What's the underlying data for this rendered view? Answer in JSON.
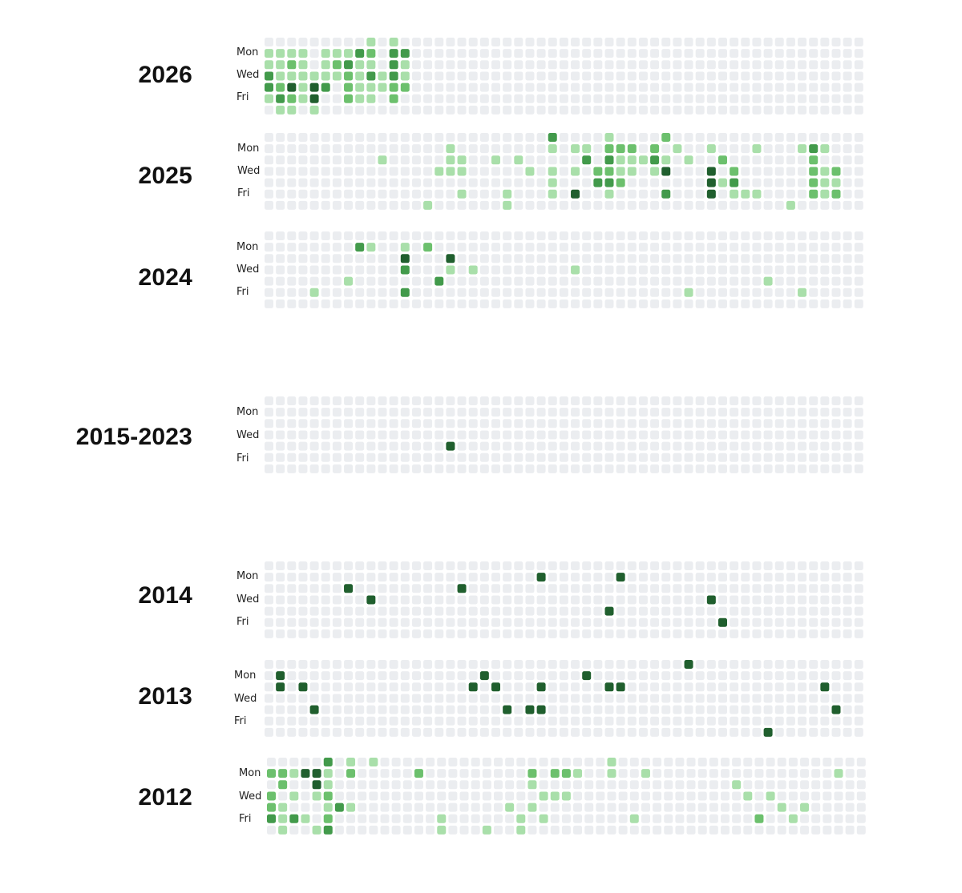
{
  "chart_data": [
    {
      "type": "heatmap",
      "title": "2026",
      "row_labels": [
        "Mon",
        "Wed",
        "Fri"
      ],
      "weeks": 53,
      "colors": {
        "0": "#ebedf0",
        "1": "#a9dfaa",
        "2": "#6cc06d",
        "3": "#429a4b",
        "4": "#205f2e"
      },
      "cells": [
        [
          9,
          0,
          1
        ],
        [
          11,
          0,
          1
        ],
        [
          0,
          1,
          1
        ],
        [
          1,
          1,
          1
        ],
        [
          2,
          1,
          1
        ],
        [
          3,
          1,
          1
        ],
        [
          5,
          1,
          1
        ],
        [
          6,
          1,
          1
        ],
        [
          7,
          1,
          1
        ],
        [
          8,
          1,
          3
        ],
        [
          9,
          1,
          2
        ],
        [
          11,
          1,
          3
        ],
        [
          12,
          1,
          3
        ],
        [
          0,
          2,
          1
        ],
        [
          1,
          2,
          1
        ],
        [
          2,
          2,
          2
        ],
        [
          3,
          2,
          1
        ],
        [
          5,
          2,
          1
        ],
        [
          6,
          2,
          2
        ],
        [
          7,
          2,
          3
        ],
        [
          8,
          2,
          1
        ],
        [
          9,
          2,
          1
        ],
        [
          11,
          2,
          3
        ],
        [
          12,
          2,
          1
        ],
        [
          0,
          3,
          3
        ],
        [
          1,
          3,
          1
        ],
        [
          2,
          3,
          1
        ],
        [
          3,
          3,
          1
        ],
        [
          4,
          3,
          1
        ],
        [
          5,
          3,
          1
        ],
        [
          6,
          3,
          1
        ],
        [
          7,
          3,
          2
        ],
        [
          8,
          3,
          1
        ],
        [
          9,
          3,
          3
        ],
        [
          10,
          3,
          1
        ],
        [
          11,
          3,
          3
        ],
        [
          12,
          3,
          1
        ],
        [
          0,
          4,
          3
        ],
        [
          1,
          4,
          2
        ],
        [
          2,
          4,
          4
        ],
        [
          3,
          4,
          1
        ],
        [
          4,
          4,
          4
        ],
        [
          5,
          4,
          3
        ],
        [
          7,
          4,
          2
        ],
        [
          8,
          4,
          1
        ],
        [
          9,
          4,
          1
        ],
        [
          10,
          4,
          1
        ],
        [
          11,
          4,
          2
        ],
        [
          12,
          4,
          2
        ],
        [
          0,
          5,
          1
        ],
        [
          1,
          5,
          3
        ],
        [
          2,
          5,
          2
        ],
        [
          3,
          5,
          1
        ],
        [
          4,
          5,
          4
        ],
        [
          7,
          5,
          2
        ],
        [
          8,
          5,
          1
        ],
        [
          9,
          5,
          1
        ],
        [
          11,
          5,
          2
        ],
        [
          1,
          6,
          1
        ],
        [
          2,
          6,
          1
        ],
        [
          4,
          6,
          1
        ]
      ]
    },
    {
      "type": "heatmap",
      "title": "2025",
      "row_labels": [
        "Mon",
        "Wed",
        "Fri"
      ],
      "weeks": 53,
      "colors": {
        "0": "#ebedf0",
        "1": "#a9dfaa",
        "2": "#6cc06d",
        "3": "#429a4b",
        "4": "#205f2e"
      },
      "cells": [
        [
          25,
          0,
          3
        ],
        [
          30,
          0,
          1
        ],
        [
          35,
          0,
          2
        ],
        [
          16,
          1,
          1
        ],
        [
          25,
          1,
          1
        ],
        [
          27,
          1,
          1
        ],
        [
          28,
          1,
          1
        ],
        [
          30,
          1,
          2
        ],
        [
          31,
          1,
          2
        ],
        [
          32,
          1,
          2
        ],
        [
          34,
          1,
          2
        ],
        [
          36,
          1,
          1
        ],
        [
          39,
          1,
          1
        ],
        [
          43,
          1,
          1
        ],
        [
          47,
          1,
          1
        ],
        [
          48,
          1,
          3
        ],
        [
          49,
          1,
          1
        ],
        [
          10,
          2,
          1
        ],
        [
          16,
          2,
          1
        ],
        [
          17,
          2,
          1
        ],
        [
          20,
          2,
          1
        ],
        [
          22,
          2,
          1
        ],
        [
          28,
          2,
          3
        ],
        [
          30,
          2,
          3
        ],
        [
          31,
          2,
          1
        ],
        [
          32,
          2,
          1
        ],
        [
          33,
          2,
          1
        ],
        [
          34,
          2,
          3
        ],
        [
          35,
          2,
          1
        ],
        [
          37,
          2,
          1
        ],
        [
          40,
          2,
          2
        ],
        [
          48,
          2,
          2
        ],
        [
          15,
          3,
          1
        ],
        [
          16,
          3,
          1
        ],
        [
          17,
          3,
          1
        ],
        [
          23,
          3,
          1
        ],
        [
          25,
          3,
          1
        ],
        [
          27,
          3,
          1
        ],
        [
          29,
          3,
          2
        ],
        [
          30,
          3,
          2
        ],
        [
          31,
          3,
          1
        ],
        [
          32,
          3,
          1
        ],
        [
          34,
          3,
          1
        ],
        [
          35,
          3,
          4
        ],
        [
          39,
          3,
          4
        ],
        [
          41,
          3,
          2
        ],
        [
          48,
          3,
          2
        ],
        [
          49,
          3,
          1
        ],
        [
          50,
          3,
          2
        ],
        [
          25,
          4,
          1
        ],
        [
          29,
          4,
          3
        ],
        [
          30,
          4,
          3
        ],
        [
          31,
          4,
          2
        ],
        [
          39,
          4,
          4
        ],
        [
          40,
          4,
          1
        ],
        [
          41,
          4,
          3
        ],
        [
          48,
          4,
          2
        ],
        [
          49,
          4,
          1
        ],
        [
          50,
          4,
          1
        ],
        [
          17,
          5,
          1
        ],
        [
          21,
          5,
          1
        ],
        [
          25,
          5,
          1
        ],
        [
          27,
          5,
          4
        ],
        [
          30,
          5,
          1
        ],
        [
          35,
          5,
          3
        ],
        [
          39,
          5,
          4
        ],
        [
          41,
          5,
          1
        ],
        [
          42,
          5,
          1
        ],
        [
          43,
          5,
          1
        ],
        [
          48,
          5,
          2
        ],
        [
          49,
          5,
          1
        ],
        [
          50,
          5,
          2
        ],
        [
          14,
          6,
          1
        ],
        [
          21,
          6,
          1
        ],
        [
          46,
          6,
          1
        ]
      ]
    },
    {
      "type": "heatmap",
      "title": "2024",
      "row_labels": [
        "Mon",
        "Wed",
        "Fri"
      ],
      "weeks": 53,
      "colors": {
        "0": "#ebedf0",
        "1": "#a9dfaa",
        "2": "#6cc06d",
        "3": "#429a4b",
        "4": "#205f2e"
      },
      "cells": [
        [
          8,
          1,
          3
        ],
        [
          9,
          1,
          1
        ],
        [
          12,
          1,
          1
        ],
        [
          14,
          1,
          2
        ],
        [
          12,
          2,
          4
        ],
        [
          16,
          2,
          4
        ],
        [
          12,
          3,
          3
        ],
        [
          16,
          3,
          1
        ],
        [
          18,
          3,
          1
        ],
        [
          27,
          3,
          1
        ],
        [
          7,
          4,
          1
        ],
        [
          15,
          4,
          3
        ],
        [
          44,
          4,
          1
        ],
        [
          4,
          5,
          1
        ],
        [
          12,
          5,
          3
        ],
        [
          37,
          5,
          1
        ],
        [
          47,
          5,
          1
        ]
      ]
    },
    {
      "type": "heatmap",
      "title": "2015-2023",
      "row_labels": [
        "Mon",
        "Wed",
        "Fri"
      ],
      "weeks": 53,
      "colors": {
        "0": "#ebedf0",
        "1": "#a9dfaa",
        "2": "#6cc06d",
        "3": "#429a4b",
        "4": "#205f2e"
      },
      "cells": [
        [
          16,
          4,
          4
        ]
      ]
    },
    {
      "type": "heatmap",
      "title": "2014",
      "row_labels": [
        "Mon",
        "Wed",
        "Fri"
      ],
      "weeks": 53,
      "colors": {
        "0": "#ebedf0",
        "1": "#a9dfaa",
        "2": "#6cc06d",
        "3": "#429a4b",
        "4": "#205f2e"
      },
      "cells": [
        [
          24,
          1,
          4
        ],
        [
          31,
          1,
          4
        ],
        [
          7,
          2,
          4
        ],
        [
          17,
          2,
          4
        ],
        [
          9,
          3,
          4
        ],
        [
          39,
          3,
          4
        ],
        [
          30,
          4,
          4
        ],
        [
          40,
          5,
          4
        ]
      ]
    },
    {
      "type": "heatmap",
      "title": "2013",
      "row_labels": [
        "Mon",
        "Wed",
        "Fri"
      ],
      "weeks": 53,
      "colors": {
        "0": "#ebedf0",
        "1": "#a9dfaa",
        "2": "#6cc06d",
        "3": "#429a4b",
        "4": "#205f2e"
      },
      "cells": [
        [
          37,
          0,
          4
        ],
        [
          1,
          1,
          4
        ],
        [
          19,
          1,
          4
        ],
        [
          28,
          1,
          4
        ],
        [
          1,
          2,
          4
        ],
        [
          3,
          2,
          4
        ],
        [
          18,
          2,
          4
        ],
        [
          20,
          2,
          4
        ],
        [
          24,
          2,
          4
        ],
        [
          30,
          2,
          4
        ],
        [
          31,
          2,
          4
        ],
        [
          49,
          2,
          4
        ],
        [
          4,
          4,
          4
        ],
        [
          21,
          4,
          4
        ],
        [
          23,
          4,
          4
        ],
        [
          24,
          4,
          4
        ],
        [
          50,
          4,
          4
        ],
        [
          44,
          6,
          4
        ]
      ]
    },
    {
      "type": "heatmap",
      "title": "2012",
      "row_labels": [
        "Mon",
        "Wed",
        "Fri"
      ],
      "weeks": 53,
      "colors": {
        "0": "#ebedf0",
        "1": "#a9dfaa",
        "2": "#6cc06d",
        "3": "#429a4b",
        "4": "#205f2e"
      },
      "cells": [
        [
          5,
          0,
          3
        ],
        [
          7,
          0,
          1
        ],
        [
          9,
          0,
          1
        ],
        [
          30,
          0,
          1
        ],
        [
          0,
          1,
          2
        ],
        [
          1,
          1,
          2
        ],
        [
          2,
          1,
          1
        ],
        [
          3,
          1,
          4
        ],
        [
          4,
          1,
          4
        ],
        [
          5,
          1,
          1
        ],
        [
          7,
          1,
          2
        ],
        [
          13,
          1,
          2
        ],
        [
          23,
          1,
          2
        ],
        [
          25,
          1,
          2
        ],
        [
          26,
          1,
          2
        ],
        [
          27,
          1,
          1
        ],
        [
          30,
          1,
          1
        ],
        [
          33,
          1,
          1
        ],
        [
          50,
          1,
          1
        ],
        [
          1,
          2,
          2
        ],
        [
          4,
          2,
          4
        ],
        [
          5,
          2,
          1
        ],
        [
          23,
          2,
          1
        ],
        [
          41,
          2,
          1
        ],
        [
          0,
          3,
          2
        ],
        [
          2,
          3,
          1
        ],
        [
          4,
          3,
          1
        ],
        [
          5,
          3,
          2
        ],
        [
          24,
          3,
          1
        ],
        [
          25,
          3,
          1
        ],
        [
          26,
          3,
          1
        ],
        [
          42,
          3,
          1
        ],
        [
          44,
          3,
          1
        ],
        [
          0,
          4,
          2
        ],
        [
          1,
          4,
          1
        ],
        [
          5,
          4,
          1
        ],
        [
          6,
          4,
          3
        ],
        [
          7,
          4,
          1
        ],
        [
          21,
          4,
          1
        ],
        [
          23,
          4,
          1
        ],
        [
          45,
          4,
          1
        ],
        [
          47,
          4,
          1
        ],
        [
          0,
          5,
          3
        ],
        [
          1,
          5,
          1
        ],
        [
          2,
          5,
          3
        ],
        [
          3,
          5,
          1
        ],
        [
          5,
          5,
          2
        ],
        [
          15,
          5,
          1
        ],
        [
          22,
          5,
          1
        ],
        [
          24,
          5,
          1
        ],
        [
          32,
          5,
          1
        ],
        [
          43,
          5,
          2
        ],
        [
          46,
          5,
          1
        ],
        [
          1,
          6,
          1
        ],
        [
          4,
          6,
          1
        ],
        [
          5,
          6,
          3
        ],
        [
          15,
          6,
          1
        ],
        [
          19,
          6,
          1
        ],
        [
          22,
          6,
          1
        ]
      ]
    }
  ]
}
